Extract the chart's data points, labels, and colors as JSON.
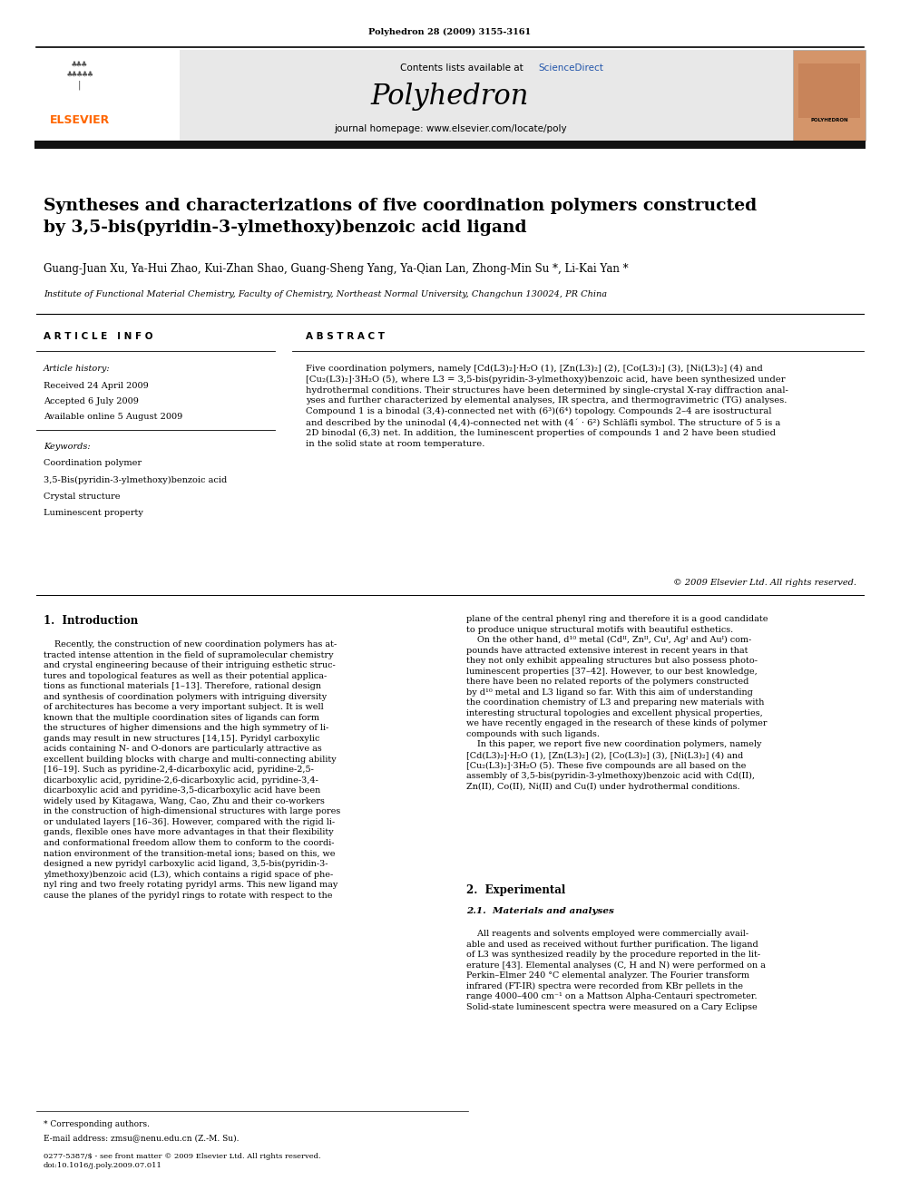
{
  "page_width": 9.92,
  "page_height": 13.23,
  "bg_color": "#ffffff",
  "journal_ref": "Polyhedron 28 (2009) 3155-3161",
  "journal_name": "Polyhedron",
  "journal_homepage": "journal homepage: www.elsevier.com/locate/poly",
  "sciencedirect_text": "Contents lists available at ",
  "sciencedirect_link": "ScienceDirect",
  "elsevier_color": "#ff6600",
  "header_bg": "#e8e8e8",
  "title": "Syntheses and characterizations of five coordination polymers constructed\nby 3,5-bis(pyridin-3-ylmethoxy)benzoic acid ligand",
  "authors": "Guang-Juan Xu, Ya-Hui Zhao, Kui-Zhan Shao, Guang-Sheng Yang, Ya-Qian Lan, Zhong-Min Su *, Li-Kai Yan *",
  "affiliation": "Institute of Functional Material Chemistry, Faculty of Chemistry, Northeast Normal University, Changchun 130024, PR China",
  "article_info_title": "A R T I C L E   I N F O",
  "article_history_title": "Article history:",
  "received": "Received 24 April 2009",
  "accepted": "Accepted 6 July 2009",
  "available": "Available online 5 August 2009",
  "keywords_title": "Keywords:",
  "keywords": [
    "Coordination polymer",
    "3,5-Bis(pyridin-3-ylmethoxy)benzoic acid",
    "Crystal structure",
    "Luminescent property"
  ],
  "abstract_title": "A B S T R A C T",
  "abstract_text": "Five coordination polymers, namely [Cd(L3)₂]·H₂O (1), [Zn(L3)₂] (2), [Co(L3)₂] (3), [Ni(L3)₂] (4) and\n[Cu₂(L3)₂]·3H₂O (5), where L3 = 3,5-bis(pyridin-3-ylmethoxy)benzoic acid, have been synthesized under\nhydrothermal conditions. Their structures have been determined by single-crystal X-ray diffraction anal-\nyses and further characterized by elemental analyses, IR spectra, and thermogravimetric (TG) analyses.\nCompound 1 is a binodal (3,4)-connected net with (6³)(6⁴) topology. Compounds 2–4 are isostructural\nand described by the uninodal (4,4)-connected net with (4´ · 6²) Schläfli symbol. The structure of 5 is a\n2D binodal (6,3) net. In addition, the luminescent properties of compounds 1 and 2 have been studied\nin the solid state at room temperature.",
  "copyright": "© 2009 Elsevier Ltd. All rights reserved.",
  "intro_title": "1.  Introduction",
  "intro_col1": "    Recently, the construction of new coordination polymers has at-\ntracted intense attention in the field of supramolecular chemistry\nand crystal engineering because of their intriguing esthetic struc-\ntures and topological features as well as their potential applica-\ntions as functional materials [1–13]. Therefore, rational design\nand synthesis of coordination polymers with intriguing diversity\nof architectures has become a very important subject. It is well\nknown that the multiple coordination sites of ligands can form\nthe structures of higher dimensions and the high symmetry of li-\ngands may result in new structures [14,15]. Pyridyl carboxylic\nacids containing N- and O-donors are particularly attractive as\nexcellent building blocks with charge and multi-connecting ability\n[16–19]. Such as pyridine-2,4-dicarboxylic acid, pyridine-2,5-\ndicarboxylic acid, pyridine-2,6-dicarboxylic acid, pyridine-3,4-\ndicarboxylic acid and pyridine-3,5-dicarboxylic acid have been\nwidely used by Kitagawa, Wang, Cao, Zhu and their co-workers\nin the construction of high-dimensional structures with large pores\nor undulated layers [16–36]. However, compared with the rigid li-\ngands, flexible ones have more advantages in that their flexibility\nand conformational freedom allow them to conform to the coordi-\nnation environment of the transition-metal ions; based on this, we\ndesigned a new pyridyl carboxylic acid ligand, 3,5-bis(pyridin-3-\nylmethoxy)benzoic acid (L3), which contains a rigid space of phe-\nnyl ring and two freely rotating pyridyl arms. This new ligand may\ncause the planes of the pyridyl rings to rotate with respect to the",
  "intro_col2": "plane of the central phenyl ring and therefore it is a good candidate\nto produce unique structural motifs with beautiful esthetics.\n    On the other hand, d¹⁰ metal (Cdᴵᴵ, Znᴵᴵ, Cuᴵ, Agᴵ and Auᴵ) com-\npounds have attracted extensive interest in recent years in that\nthey not only exhibit appealing structures but also possess photo-\nluminescent properties [37–42]. However, to our best knowledge,\nthere have been no related reports of the polymers constructed\nby d¹⁰ metal and L3 ligand so far. With this aim of understanding\nthe coordination chemistry of L3 and preparing new materials with\ninteresting structural topologies and excellent physical properties,\nwe have recently engaged in the research of these kinds of polymer\ncompounds with such ligands.\n    In this paper, we report five new coordination polymers, namely\n[Cd(L3)₂]·H₂O (1), [Zn(L3)₂] (2), [Co(L3)₂] (3), [Ni(L3)₂] (4) and\n[Cu₂(L3)₂]·3H₂O (5). These five compounds are all based on the\nassembly of 3,5-bis(pyridin-3-ylmethoxy)benzoic acid with Cd(II),\nZn(II), Co(II), Ni(II) and Cu(I) under hydrothermal conditions.",
  "section2_title": "2.  Experimental",
  "section2_1_title": "2.1.  Materials and analyses",
  "section2_1_text": "    All reagents and solvents employed were commercially avail-\nable and used as received without further purification. The ligand\nof L3 was synthesized readily by the procedure reported in the lit-\nerature [43]. Elemental analyses (C, H and N) were performed on a\nPerkin–Elmer 240 °C elemental analyzer. The Fourier transform\ninfrared (FT-IR) spectra were recorded from KBr pellets in the\nrange 4000–400 cm⁻¹ on a Mattson Alpha-Centauri spectrometer.\nSolid-state luminescent spectra were measured on a Cary Eclipse",
  "footer_left": "* Corresponding authors.",
  "footer_email": "E-mail address: zmsu@nenu.edu.cn (Z.-M. Su).",
  "footer_copyright": "0277-5387/$ - see front matter © 2009 Elsevier Ltd. All rights reserved.\ndoi:10.1016/j.poly.2009.07.011"
}
